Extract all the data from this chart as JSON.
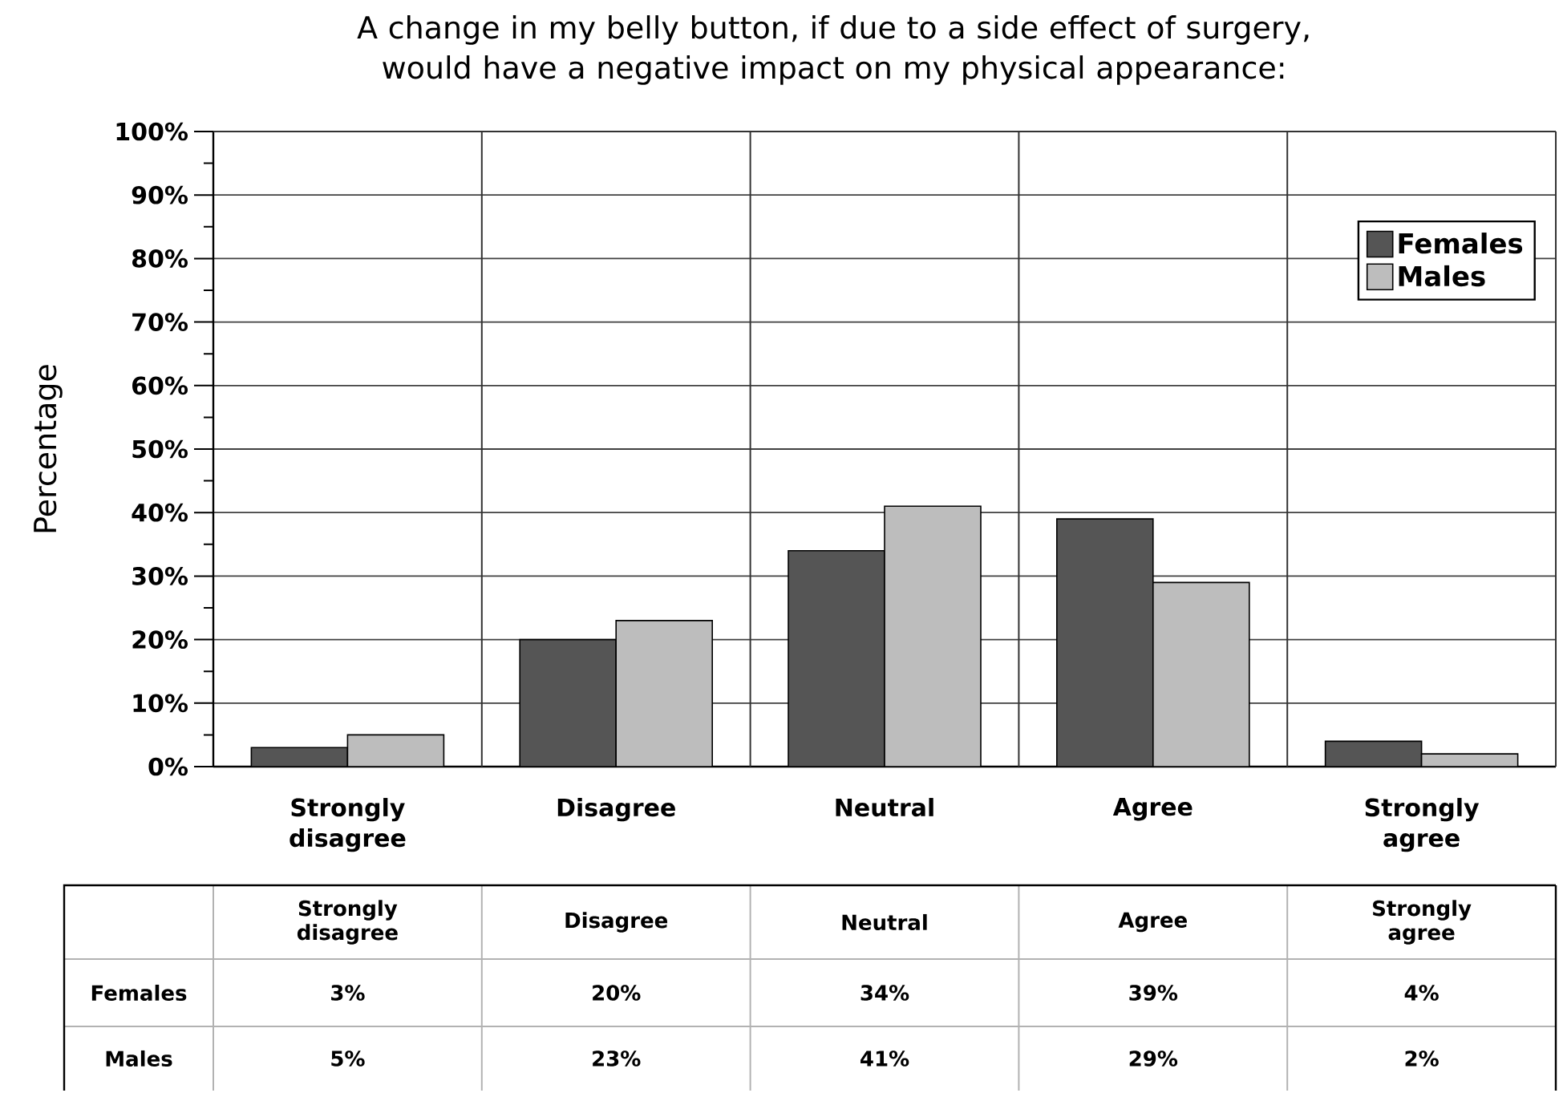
{
  "chart_data": {
    "type": "bar",
    "title": "A change in my belly button, if due to a side effect of surgery, would have a negative impact on my physical appearance:",
    "ylabel": "Percentage",
    "categories": [
      "Strongly disagree",
      "Disagree",
      "Neutral",
      "Agree",
      "Strongly agree"
    ],
    "series": [
      {
        "name": "Females",
        "color": "#555555",
        "values": [
          3,
          20,
          34,
          39,
          4
        ],
        "value_labels": [
          "3%",
          "20%",
          "34%",
          "39%",
          "4%"
        ]
      },
      {
        "name": "Males",
        "color": "#bdbdbd",
        "values": [
          5,
          23,
          41,
          29,
          2
        ],
        "value_labels": [
          "5%",
          "23%",
          "41%",
          "29%",
          "2%"
        ]
      }
    ],
    "ylim": [
      0,
      100
    ],
    "yticks": [
      {
        "value": 0,
        "label": "0%"
      },
      {
        "value": 10,
        "label": "10%"
      },
      {
        "value": 20,
        "label": "20%"
      },
      {
        "value": 30,
        "label": "30%"
      },
      {
        "value": 40,
        "label": "40%"
      },
      {
        "value": 50,
        "label": "50%"
      },
      {
        "value": 60,
        "label": "60%"
      },
      {
        "value": 70,
        "label": "70%"
      },
      {
        "value": 80,
        "label": "80%"
      },
      {
        "value": 90,
        "label": "90%"
      },
      {
        "value": 100,
        "label": "100%"
      }
    ],
    "grid": "y",
    "legend": "top right"
  }
}
